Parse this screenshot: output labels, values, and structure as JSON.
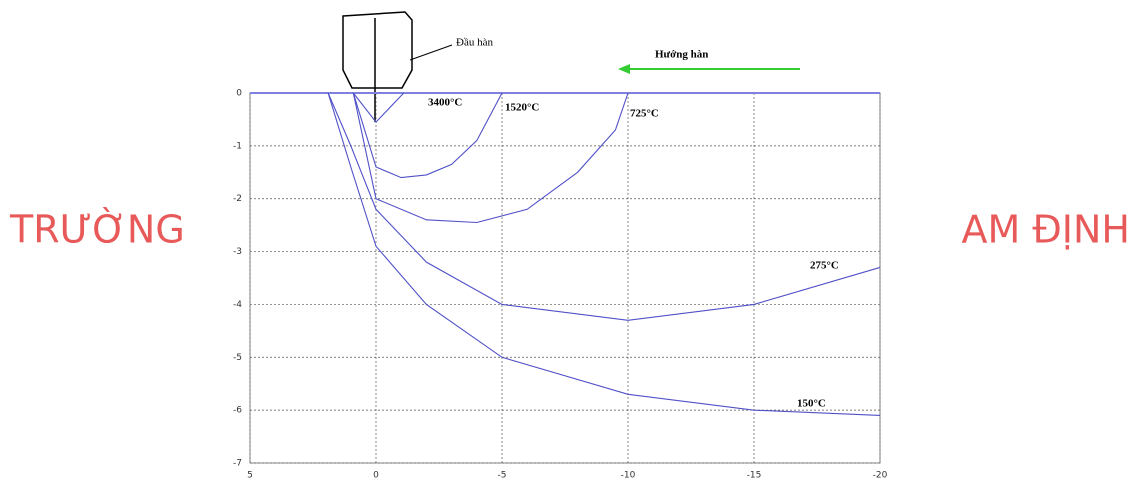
{
  "chart_data": {
    "type": "line",
    "annotations": {
      "torch": "Đầu hàn",
      "direction": "Hướng hàn"
    },
    "watermark": [
      "TRƯỜNG",
      "AM ĐỊNH"
    ],
    "xlim": [
      5,
      -20
    ],
    "xticks": [
      5,
      0,
      -5,
      -10,
      -15,
      -20
    ],
    "ylim": [
      0,
      -7
    ],
    "yticks": [
      0,
      -1,
      -2,
      -3,
      -4,
      -5,
      -6,
      -7
    ],
    "grid": true,
    "series": [
      {
        "name": "3400°C",
        "color": "#5050c8",
        "x": [
          0.9,
          0,
          -1.1
        ],
        "y": [
          0,
          -0.55,
          0
        ]
      },
      {
        "name": "1520°C",
        "color": "#5050c8",
        "x": [
          0.9,
          0,
          -1,
          -2,
          -3,
          -4,
          -5
        ],
        "y": [
          0,
          -1.4,
          -1.6,
          -1.55,
          -1.35,
          -0.9,
          0
        ]
      },
      {
        "name": "725°C",
        "color": "#5050c8",
        "x": [
          0.9,
          0,
          -2,
          -4,
          -6,
          -8,
          -9.5,
          -10
        ],
        "y": [
          0,
          -2.0,
          -2.4,
          -2.45,
          -2.2,
          -1.5,
          -0.7,
          0
        ]
      },
      {
        "name": "275°C",
        "color": "#5050c8",
        "x": [
          1.9,
          1,
          0,
          -2,
          -5,
          -10,
          -15,
          -20
        ],
        "y": [
          0,
          -1.0,
          -2.2,
          -3.2,
          -4.0,
          -4.3,
          -4.0,
          -3.3
        ]
      },
      {
        "name": "150°C",
        "color": "#5050c8",
        "x": [
          1.9,
          1,
          0,
          -2,
          -5,
          -10,
          -15,
          -20
        ],
        "y": [
          0,
          -1.4,
          -2.9,
          -4.0,
          -5.0,
          -5.7,
          -6.0,
          -6.1
        ]
      }
    ]
  }
}
